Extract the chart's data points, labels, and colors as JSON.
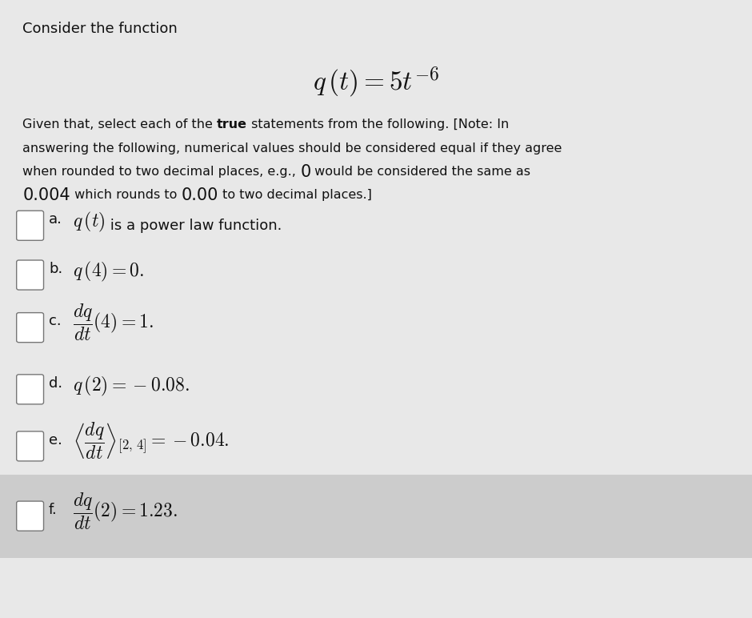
{
  "bg_color": "#d8d8d8",
  "content_bg": "#e8e8e8",
  "last_row_bg": "#cccccc",
  "text_color": "#111111",
  "title": "Consider the function",
  "main_formula": "$q\\,(t) = 5t^{-6}$",
  "font_size_title": 13,
  "font_size_formula": 24,
  "font_size_note": 11.5,
  "font_size_note_large": 15,
  "font_size_options_label": 13,
  "font_size_options_math": 17,
  "options": [
    {
      "label": "a.",
      "math": "$q\\,(t)$",
      "text_small": " is a power law function.",
      "has_fraction": false
    },
    {
      "label": "b.",
      "math": "$q\\,(4) = 0.$",
      "text_small": "",
      "has_fraction": false
    },
    {
      "label": "c.",
      "math": "$\\dfrac{dq}{dt}(4) = 1.$",
      "text_small": "",
      "has_fraction": true
    },
    {
      "label": "d.",
      "math": "$q\\,(2) = -0.08.$",
      "text_small": "",
      "has_fraction": false
    },
    {
      "label": "e.",
      "math": "$\\left\\langle\\dfrac{dq}{dt}\\right\\rangle_{[2,\\,4]} = -0.04.$",
      "text_small": "",
      "has_fraction": true
    },
    {
      "label": "f.",
      "math": "$\\dfrac{dq}{dt}(2) = 1.23.$",
      "text_small": "",
      "has_fraction": true
    }
  ]
}
